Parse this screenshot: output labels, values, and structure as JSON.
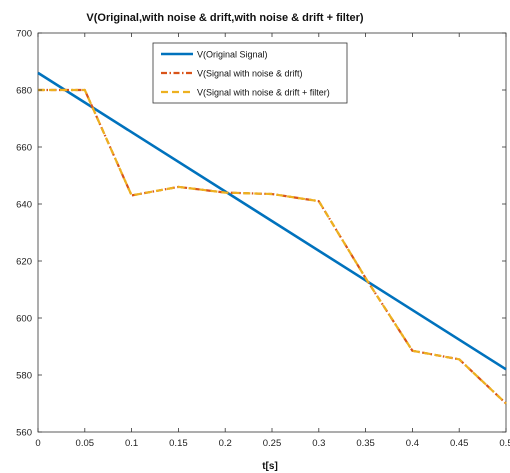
{
  "chart_data": {
    "type": "line",
    "title": "V(Original,with noise & drift,with noise & drift + filter)",
    "xlabel": "t[s]",
    "ylabel": "",
    "xlim": [
      0,
      0.5
    ],
    "ylim": [
      560,
      700
    ],
    "xticks": [
      0,
      0.05,
      0.1,
      0.15,
      0.2,
      0.25,
      0.3,
      0.35,
      0.4,
      0.45,
      0.5
    ],
    "xtick_labels": [
      "0",
      "0.05",
      "0.1",
      "0.15",
      "0.2",
      "0.25",
      "0.3",
      "0.35",
      "0.4",
      "0.45",
      "0.5"
    ],
    "yticks": [
      560,
      580,
      600,
      620,
      640,
      660,
      680,
      700
    ],
    "ytick_labels": [
      "560",
      "580",
      "600",
      "620",
      "640",
      "660",
      "680",
      "700"
    ],
    "grid": false,
    "legend_position": "top-center",
    "series": [
      {
        "name": "V(Original Signal)",
        "color": "#0072BD",
        "style": "solid",
        "x": [
          0,
          0.5
        ],
        "y": [
          686,
          582
        ]
      },
      {
        "name": "V(Signal with noise & drift)",
        "color": "#D95319",
        "style": "dashdot",
        "x": [
          0,
          0.05,
          0.1,
          0.15,
          0.2,
          0.25,
          0.3,
          0.35,
          0.4,
          0.45,
          0.5
        ],
        "y": [
          680,
          680,
          643,
          646,
          644,
          643.5,
          641,
          614,
          588.5,
          585.5,
          570
        ]
      },
      {
        "name": "V(Signal with noise & drift + filter)",
        "color": "#EDB120",
        "style": "dashed",
        "x": [
          0,
          0.05,
          0.1,
          0.15,
          0.2,
          0.25,
          0.3,
          0.35,
          0.4,
          0.45,
          0.5
        ],
        "y": [
          680,
          680,
          643,
          646,
          644,
          643.5,
          641,
          614,
          588.5,
          585.5,
          570
        ]
      }
    ]
  }
}
